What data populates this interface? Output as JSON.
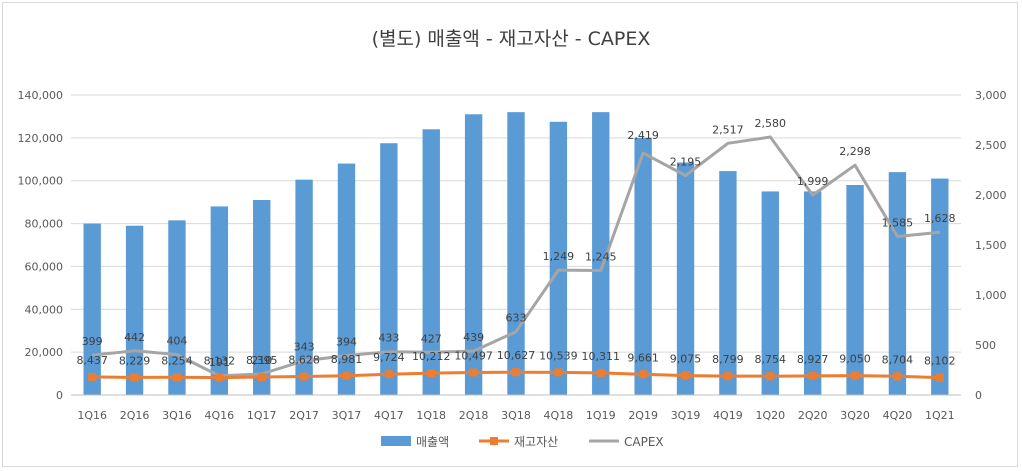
{
  "chart_data": {
    "type": "bar",
    "title": "(별도) 매출액 - 재고자산 - CAPEX",
    "categories": [
      "1Q16",
      "2Q16",
      "3Q16",
      "4Q16",
      "1Q17",
      "2Q17",
      "3Q17",
      "4Q17",
      "1Q18",
      "2Q18",
      "3Q18",
      "4Q18",
      "1Q19",
      "2Q19",
      "3Q19",
      "4Q19",
      "1Q20",
      "2Q20",
      "3Q20",
      "4Q20",
      "1Q21"
    ],
    "y_left": {
      "min": 0,
      "max": 140000,
      "ticks": [
        0,
        20000,
        40000,
        60000,
        80000,
        100000,
        120000,
        140000
      ],
      "tick_labels": [
        "0",
        "20,000",
        "40,000",
        "60,000",
        "80,000",
        "100,000",
        "120,000",
        "140,000"
      ]
    },
    "y_right": {
      "min": 0,
      "max": 3000,
      "ticks": [
        0,
        500,
        1000,
        1500,
        2000,
        2500,
        3000
      ],
      "tick_labels": [
        "0",
        "500",
        "1,000",
        "1,500",
        "2,000",
        "2,500",
        "3,000"
      ]
    },
    "series": [
      {
        "name": "매출액",
        "type": "bar",
        "axis": "left",
        "color": "#5b9bd5",
        "values": [
          80000,
          79000,
          81500,
          88000,
          91000,
          100500,
          108000,
          117500,
          124000,
          131000,
          132000,
          127500,
          132000,
          120000,
          108500,
          104500,
          95000,
          95000,
          98000,
          104000,
          101000
        ]
      },
      {
        "name": "재고자산",
        "type": "line",
        "axis": "left",
        "color": "#ed7d31",
        "values": [
          8437,
          8229,
          8254,
          8132,
          8395,
          8628,
          8981,
          9724,
          10212,
          10497,
          10627,
          10539,
          10311,
          9661,
          9075,
          8799,
          8754,
          8927,
          9050,
          8704,
          8102
        ],
        "labels": [
          "8,437",
          "8,229",
          "8,254",
          "8,132",
          "8,395",
          "8,628",
          "8,981",
          "9,724",
          "10,212",
          "10,497",
          "10,627",
          "10,539",
          "10,311",
          "9,661",
          "9,075",
          "8,799",
          "8,754",
          "8,927",
          "9,050",
          "8,704",
          "8,102"
        ]
      },
      {
        "name": "CAPEX",
        "type": "line",
        "axis": "right",
        "color": "#a5a5a5",
        "values": [
          399,
          442,
          404,
          191,
          210,
          343,
          394,
          433,
          427,
          439,
          633,
          1249,
          1245,
          2419,
          2195,
          2517,
          2580,
          1999,
          2298,
          1585,
          1628
        ],
        "labels": [
          "399",
          "442",
          "404",
          "191",
          "210",
          "343",
          "394",
          "433",
          "427",
          "439",
          "633",
          "1,249",
          "1,245",
          "2,419",
          "2,195",
          "2,517",
          "2,580",
          "1,999",
          "2,298",
          "1,585",
          "1,628"
        ]
      }
    ],
    "legend": {
      "position": "bottom",
      "entries": [
        "매출액",
        "재고자산",
        "CAPEX"
      ]
    },
    "grid": true
  }
}
